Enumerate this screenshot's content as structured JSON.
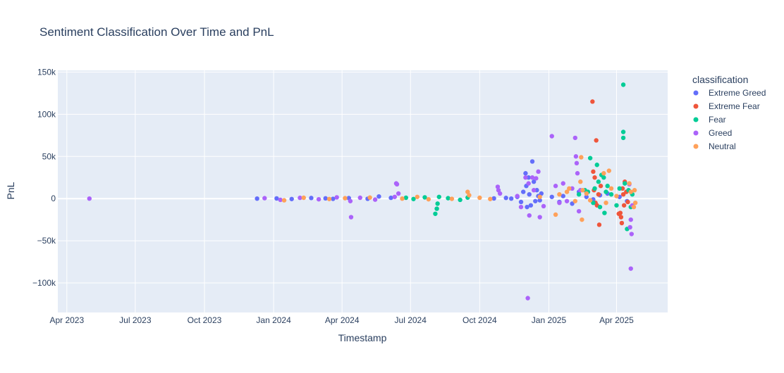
{
  "chart_data": {
    "type": "scatter",
    "title": "Sentiment Classification Over Time and PnL",
    "xlabel": "Timestamp",
    "ylabel": "PnL",
    "x_axis_type": "date",
    "xlim": [
      "2023-03-20",
      "2025-06-08"
    ],
    "ylim": [
      -135000,
      152000
    ],
    "x_ticks": [
      {
        "date": "2023-04-01",
        "label": "Apr 2023"
      },
      {
        "date": "2023-07-01",
        "label": "Jul 2023"
      },
      {
        "date": "2023-10-01",
        "label": "Oct 2023"
      },
      {
        "date": "2024-01-01",
        "label": "Jan 2024"
      },
      {
        "date": "2024-04-01",
        "label": "Apr 2024"
      },
      {
        "date": "2024-07-01",
        "label": "Jul 2024"
      },
      {
        "date": "2024-10-01",
        "label": "Oct 2024"
      },
      {
        "date": "2025-01-01",
        "label": "Jan 2025"
      },
      {
        "date": "2025-04-01",
        "label": "Apr 2025"
      }
    ],
    "y_ticks": [
      {
        "value": -100000,
        "label": "−100k"
      },
      {
        "value": -50000,
        "label": "−50k"
      },
      {
        "value": 0,
        "label": "0"
      },
      {
        "value": 50000,
        "label": "50k"
      },
      {
        "value": 100000,
        "label": "100k"
      },
      {
        "value": 150000,
        "label": "150k"
      }
    ],
    "grid": true,
    "legend_title": "classification",
    "legend_position": "right",
    "series": [
      {
        "name": "Extreme Greed",
        "color": "#636efa",
        "points": [
          [
            "2023-12-10",
            0
          ],
          [
            "2024-01-05",
            200
          ],
          [
            "2024-01-25",
            -500
          ],
          [
            "2024-02-20",
            700
          ],
          [
            "2024-03-10",
            300
          ],
          [
            "2024-03-20",
            -300
          ],
          [
            "2024-04-10",
            600
          ],
          [
            "2024-05-05",
            -200
          ],
          [
            "2024-05-20",
            2500
          ],
          [
            "2024-06-05",
            900
          ],
          [
            "2024-10-20",
            200
          ],
          [
            "2024-11-05",
            800
          ],
          [
            "2024-11-12",
            0
          ],
          [
            "2024-11-20",
            2000
          ],
          [
            "2024-11-25",
            -4000
          ],
          [
            "2024-11-28",
            8000
          ],
          [
            "2024-12-01",
            30000
          ],
          [
            "2024-12-02",
            15000
          ],
          [
            "2024-12-03",
            -10000
          ],
          [
            "2024-12-05",
            25000
          ],
          [
            "2024-12-06",
            5000
          ],
          [
            "2024-12-08",
            -8000
          ],
          [
            "2024-12-10",
            44000
          ],
          [
            "2024-12-12",
            20000
          ],
          [
            "2024-12-14",
            -3000
          ],
          [
            "2024-12-16",
            10000
          ],
          [
            "2024-12-18",
            3000
          ],
          [
            "2024-12-20",
            -2000
          ],
          [
            "2024-12-22",
            6000
          ],
          [
            "2025-01-05",
            2000
          ],
          [
            "2025-01-15",
            -4000
          ],
          [
            "2025-01-20",
            3000
          ],
          [
            "2025-02-01",
            -6000
          ],
          [
            "2025-02-10",
            8000
          ],
          [
            "2025-02-20",
            2000
          ],
          [
            "2025-03-01",
            -1000
          ],
          [
            "2025-03-10",
            4000
          ],
          [
            "2025-03-20",
            6000
          ],
          [
            "2025-04-05",
            2000
          ],
          [
            "2025-04-15",
            -3000
          ]
        ]
      },
      {
        "name": "Extreme Fear",
        "color": "#ef553b",
        "points": [
          [
            "2025-02-28",
            115000
          ],
          [
            "2025-03-05",
            69000
          ],
          [
            "2025-03-09",
            -31000
          ],
          [
            "2025-03-01",
            32000
          ],
          [
            "2025-03-03",
            25000
          ],
          [
            "2025-03-02",
            10000
          ],
          [
            "2025-03-04",
            -5000
          ],
          [
            "2025-03-06",
            -8000
          ],
          [
            "2025-03-08",
            5000
          ],
          [
            "2025-03-11",
            15000
          ],
          [
            "2025-04-04",
            -18000
          ],
          [
            "2025-04-07",
            -22000
          ],
          [
            "2025-04-08",
            -29000
          ],
          [
            "2025-04-06",
            -17000
          ],
          [
            "2025-04-09",
            12000
          ],
          [
            "2025-04-10",
            5000
          ],
          [
            "2025-04-11",
            -8000
          ],
          [
            "2025-04-12",
            20000
          ],
          [
            "2025-04-14",
            8000
          ],
          [
            "2025-04-16",
            -4000
          ]
        ]
      },
      {
        "name": "Fear",
        "color": "#00cc96",
        "points": [
          [
            "2024-06-25",
            1000
          ],
          [
            "2024-07-05",
            -500
          ],
          [
            "2024-07-20",
            1500
          ],
          [
            "2024-08-03",
            -18000
          ],
          [
            "2024-08-05",
            -12000
          ],
          [
            "2024-08-06",
            -6000
          ],
          [
            "2024-08-08",
            2000
          ],
          [
            "2024-08-20",
            500
          ],
          [
            "2024-09-05",
            -1500
          ],
          [
            "2024-09-15",
            1200
          ],
          [
            "2025-02-10",
            5000
          ],
          [
            "2025-02-18",
            10000
          ],
          [
            "2025-02-22",
            8000
          ],
          [
            "2025-02-25",
            48000
          ],
          [
            "2025-03-01",
            -5000
          ],
          [
            "2025-03-03",
            12000
          ],
          [
            "2025-03-06",
            40000
          ],
          [
            "2025-03-08",
            20000
          ],
          [
            "2025-03-10",
            -10000
          ],
          [
            "2025-03-12",
            28000
          ],
          [
            "2025-03-15",
            25000
          ],
          [
            "2025-03-16",
            -17000
          ],
          [
            "2025-03-18",
            8000
          ],
          [
            "2025-03-20",
            15000
          ],
          [
            "2025-03-25",
            5000
          ],
          [
            "2025-04-01",
            -8000
          ],
          [
            "2025-04-05",
            12000
          ],
          [
            "2025-04-10",
            135000
          ],
          [
            "2025-04-10",
            79000
          ],
          [
            "2025-04-10",
            72000
          ],
          [
            "2025-04-12",
            18000
          ],
          [
            "2025-04-15",
            -36000
          ],
          [
            "2025-04-17",
            10000
          ],
          [
            "2025-04-20",
            -10000
          ],
          [
            "2025-04-22",
            5000
          ]
        ]
      },
      {
        "name": "Greed",
        "color": "#ab63fa",
        "points": [
          [
            "2023-05-01",
            0
          ],
          [
            "2023-12-20",
            500
          ],
          [
            "2024-01-10",
            -1500
          ],
          [
            "2024-02-05",
            900
          ],
          [
            "2024-03-01",
            -800
          ],
          [
            "2024-03-25",
            1500
          ],
          [
            "2024-04-12",
            -3000
          ],
          [
            "2024-04-13",
            -22000
          ],
          [
            "2024-04-25",
            1000
          ],
          [
            "2024-05-15",
            -1200
          ],
          [
            "2024-06-10",
            2000
          ],
          [
            "2024-06-12",
            18000
          ],
          [
            "2024-06-13",
            17000
          ],
          [
            "2024-06-15",
            6000
          ],
          [
            "2024-10-25",
            14000
          ],
          [
            "2024-10-26",
            10000
          ],
          [
            "2024-10-28",
            6000
          ],
          [
            "2024-11-20",
            3000
          ],
          [
            "2024-11-25",
            -10000
          ],
          [
            "2024-12-01",
            25000
          ],
          [
            "2024-12-04",
            -118000
          ],
          [
            "2024-12-05",
            18000
          ],
          [
            "2024-12-06",
            -20000
          ],
          [
            "2024-12-10",
            25000
          ],
          [
            "2024-12-12",
            10000
          ],
          [
            "2024-12-15",
            24000
          ],
          [
            "2024-12-18",
            32000
          ],
          [
            "2024-12-20",
            -22000
          ],
          [
            "2024-12-25",
            -9000
          ],
          [
            "2025-01-05",
            74000
          ],
          [
            "2025-01-10",
            15000
          ],
          [
            "2025-01-15",
            -5000
          ],
          [
            "2025-01-20",
            18000
          ],
          [
            "2025-01-25",
            -3000
          ],
          [
            "2025-02-01",
            12000
          ],
          [
            "2025-02-05",
            72000
          ],
          [
            "2025-02-06",
            50000
          ],
          [
            "2025-02-07",
            42000
          ],
          [
            "2025-02-08",
            30000
          ],
          [
            "2025-02-10",
            -15000
          ],
          [
            "2025-02-12",
            10000
          ],
          [
            "2025-04-20",
            -83000
          ],
          [
            "2025-04-21",
            -42000
          ],
          [
            "2025-04-19",
            -34000
          ],
          [
            "2025-04-20",
            -25000
          ],
          [
            "2025-04-18",
            17000
          ],
          [
            "2025-04-22",
            -8000
          ]
        ]
      },
      {
        "name": "Neutral",
        "color": "#ffa15a",
        "points": [
          [
            "2024-01-15",
            -2000
          ],
          [
            "2024-02-10",
            1000
          ],
          [
            "2024-03-15",
            -500
          ],
          [
            "2024-04-05",
            500
          ],
          [
            "2024-05-08",
            1200
          ],
          [
            "2024-06-20",
            0
          ],
          [
            "2024-07-10",
            2000
          ],
          [
            "2024-07-25",
            -800
          ],
          [
            "2024-08-25",
            -300
          ],
          [
            "2024-09-15",
            8000
          ],
          [
            "2024-09-17",
            4000
          ],
          [
            "2024-10-01",
            1000
          ],
          [
            "2024-10-15",
            -500
          ],
          [
            "2024-12-20",
            2000
          ],
          [
            "2025-01-10",
            -19000
          ],
          [
            "2025-01-15",
            5000
          ],
          [
            "2025-01-25",
            8000
          ],
          [
            "2025-01-28",
            12000
          ],
          [
            "2025-02-05",
            -3000
          ],
          [
            "2025-02-12",
            20000
          ],
          [
            "2025-02-13",
            49000
          ],
          [
            "2025-02-14",
            -25000
          ],
          [
            "2025-02-15",
            10000
          ],
          [
            "2025-02-20",
            6000
          ],
          [
            "2025-02-25",
            -2000
          ],
          [
            "2025-03-15",
            30000
          ],
          [
            "2025-03-18",
            -5000
          ],
          [
            "2025-03-22",
            33000
          ],
          [
            "2025-03-25",
            12000
          ],
          [
            "2025-04-01",
            3000
          ],
          [
            "2025-04-18",
            18000
          ],
          [
            "2025-04-20",
            8000
          ],
          [
            "2025-04-24",
            -10000
          ],
          [
            "2025-04-25",
            10000
          ],
          [
            "2025-04-26",
            -5000
          ]
        ]
      }
    ]
  }
}
